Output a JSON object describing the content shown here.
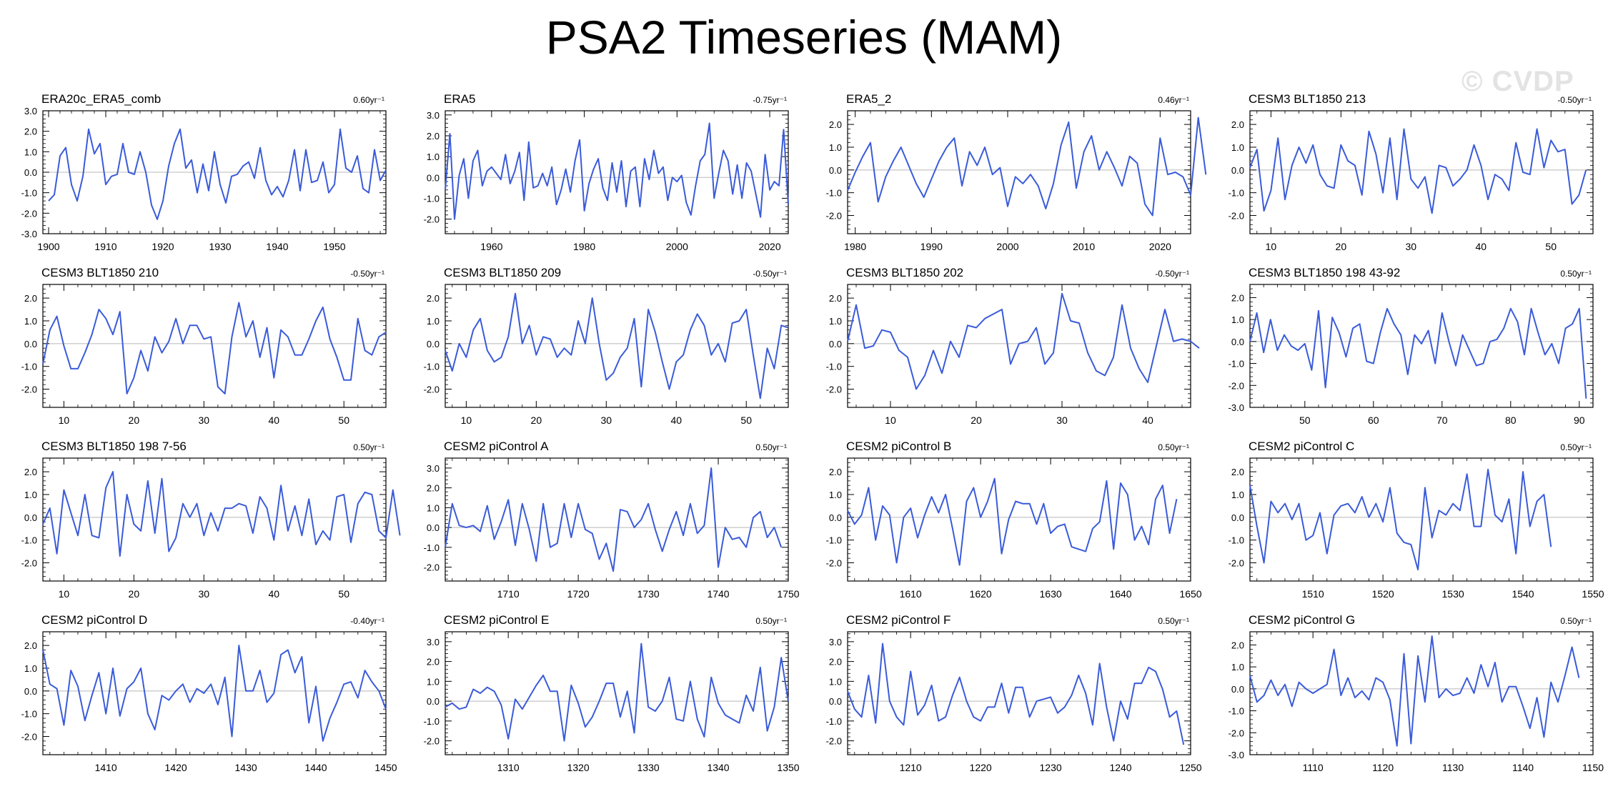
{
  "page": {
    "title": "PSA2 Timeseries (MAM)",
    "watermark": "© CVDP"
  },
  "colors": {
    "series": "#3a5bd9",
    "overlay": "#9a9a9a",
    "zero_line": "#b8b8b8",
    "axis": "#000000"
  },
  "chart_data": [
    {
      "type": "line",
      "title": "ERA20c_ERA5_comb",
      "trend": "0.60yr⁻¹",
      "xlim": [
        1899,
        1959
      ],
      "ylim": [
        -3,
        3
      ],
      "xticks": [
        1900,
        1910,
        1920,
        1930,
        1940,
        1950
      ],
      "yticks": [
        -3,
        -2,
        -1,
        0,
        1,
        2,
        3
      ],
      "yticklabels": [
        "-3.0",
        "-2.0",
        "-1.0",
        "0.0",
        "1.0",
        "2.0",
        "3.0"
      ],
      "x_start": 1900,
      "values": [
        -1.4,
        -1.1,
        0.8,
        1.2,
        -0.6,
        -1.4,
        -0.2,
        2.1,
        0.9,
        1.4,
        -0.6,
        -0.2,
        -0.1,
        1.4,
        0.0,
        -0.1,
        1.0,
        0.0,
        -1.6,
        -2.3,
        -1.4,
        0.3,
        1.4,
        2.1,
        0.2,
        0.6,
        -1.0,
        0.4,
        -0.9,
        1.0,
        -0.6,
        -1.5,
        -0.2,
        -0.1,
        0.3,
        0.5,
        -0.3,
        1.2,
        -0.4,
        -1.1,
        -0.7,
        -1.2,
        -0.4,
        1.1,
        -0.9,
        1.1,
        -0.5,
        -0.4,
        0.5,
        -1.0,
        -0.6,
        2.1,
        0.2,
        0.0,
        0.8,
        -0.8,
        -1.0,
        1.1,
        -0.4,
        0.1
      ]
    },
    {
      "type": "line",
      "title": "ERA5",
      "trend": "-0.75yr⁻¹",
      "xlim": [
        1950,
        2024
      ],
      "ylim": [
        -2.7,
        3.2
      ],
      "xticks": [
        1960,
        1980,
        2000,
        2020
      ],
      "yticks": [
        -2,
        -1,
        0,
        1,
        2,
        3
      ],
      "yticklabels": [
        "-2.0",
        "-1.0",
        "0.0",
        "1.0",
        "2.0",
        "3.0"
      ],
      "x_start": 1950,
      "values": [
        -0.6,
        2.1,
        -2.0,
        0.1,
        0.9,
        -1.0,
        0.8,
        1.3,
        -0.4,
        0.3,
        0.5,
        0.2,
        -0.1,
        1.1,
        -0.3,
        0.3,
        1.2,
        -1.1,
        1.7,
        -0.5,
        -0.4,
        0.2,
        -0.4,
        0.5,
        -1.3,
        -0.6,
        0.4,
        -0.7,
        0.8,
        1.8,
        -1.6,
        -0.3,
        0.4,
        0.9,
        -0.5,
        -1.1,
        0.7,
        -0.7,
        0.8,
        -1.4,
        0.3,
        0.5,
        -1.4,
        0.9,
        -0.1,
        1.3,
        0.2,
        0.5,
        -1.1,
        0.0,
        -0.2,
        0.1,
        -1.2,
        -1.8,
        -0.4,
        0.8,
        1.1,
        2.6,
        -1.0,
        0.2,
        1.3,
        0.8,
        -0.8,
        0.6,
        -1.0,
        0.7,
        0.3,
        -0.8,
        -1.9,
        1.1,
        -0.6,
        -0.2,
        -0.4,
        2.3,
        -1.3
      ]
    },
    {
      "type": "line",
      "title": "ERA5_2",
      "trend": "0.46yr⁻¹",
      "xlim": [
        1979,
        2024
      ],
      "ylim": [
        -2.8,
        2.6
      ],
      "xticks": [
        1980,
        1990,
        2000,
        2010,
        2020
      ],
      "yticks": [
        -2,
        -1,
        0,
        1,
        2
      ],
      "yticklabels": [
        "-2.0",
        "-1.0",
        "0.0",
        "1.0",
        "2.0"
      ],
      "x_start": 1979,
      "values": [
        -0.9,
        -0.1,
        0.6,
        1.2,
        -1.4,
        -0.3,
        0.4,
        1.0,
        0.2,
        -0.6,
        -1.2,
        -0.4,
        0.4,
        1.0,
        1.4,
        -0.7,
        0.8,
        0.2,
        1.0,
        -0.2,
        0.1,
        -1.6,
        -0.3,
        -0.6,
        -0.2,
        -0.7,
        -1.7,
        -0.6,
        1.1,
        2.1,
        -0.8,
        0.8,
        1.5,
        0.0,
        0.8,
        0.1,
        -0.7,
        0.6,
        0.3,
        -1.5,
        -2.0,
        1.4,
        -0.2,
        -0.1,
        -0.3,
        -1.1,
        2.3,
        -0.2
      ]
    },
    {
      "type": "line",
      "title": "CESM3 BLT1850 213",
      "trend": "-0.50yr⁻¹",
      "xlim": [
        7,
        56
      ],
      "ylim": [
        -2.8,
        2.6
      ],
      "xticks": [
        10,
        20,
        30,
        40,
        50
      ],
      "yticks": [
        -2,
        -1,
        0,
        1,
        2
      ],
      "yticklabels": [
        "-2.0",
        "-1.0",
        "0.0",
        "1.0",
        "2.0"
      ],
      "x_start": 7,
      "values": [
        0.1,
        0.9,
        -1.8,
        -0.9,
        1.4,
        -1.3,
        0.2,
        1.0,
        0.3,
        1.1,
        -0.2,
        -0.7,
        -0.8,
        1.1,
        0.4,
        0.2,
        -1.1,
        1.7,
        0.7,
        -1.0,
        1.4,
        -1.3,
        1.8,
        -0.4,
        -0.8,
        -0.3,
        -1.9,
        0.2,
        0.1,
        -0.7,
        -0.4,
        0.0,
        1.1,
        0.2,
        -1.3,
        -0.2,
        -0.4,
        -0.9,
        1.2,
        -0.1,
        -0.2,
        1.8,
        0.1,
        1.3,
        0.8,
        0.9,
        -1.5,
        -1.1,
        0.0
      ]
    },
    {
      "type": "line",
      "title": "CESM3 BLT1850 210",
      "trend": "-0.50yr⁻¹",
      "xlim": [
        7,
        56
      ],
      "ylim": [
        -2.8,
        2.6
      ],
      "xticks": [
        10,
        20,
        30,
        40,
        50
      ],
      "yticks": [
        -2,
        -1,
        0,
        1,
        2
      ],
      "yticklabels": [
        "-2.0",
        "-1.0",
        "0.0",
        "1.0",
        "2.0"
      ],
      "x_start": 7,
      "values": [
        -0.9,
        0.6,
        1.2,
        -0.1,
        -1.1,
        -1.1,
        -0.4,
        0.4,
        1.5,
        1.1,
        0.4,
        1.4,
        -2.2,
        -1.5,
        -0.3,
        -1.2,
        0.3,
        -0.4,
        0.1,
        1.1,
        0.0,
        0.8,
        0.8,
        0.2,
        0.3,
        -1.9,
        -2.2,
        0.3,
        1.8,
        0.3,
        1.0,
        -0.6,
        0.7,
        -1.5,
        0.6,
        0.3,
        -0.5,
        -0.5,
        0.2,
        1.0,
        1.6,
        0.2,
        -0.6,
        -1.6,
        -1.6,
        1.1,
        -0.3,
        -0.5,
        0.3,
        0.5
      ]
    },
    {
      "type": "line",
      "title": "CESM3 BLT1850 209",
      "trend": "-0.50yr⁻¹",
      "xlim": [
        7,
        56
      ],
      "ylim": [
        -2.8,
        2.6
      ],
      "xticks": [
        10,
        20,
        30,
        40,
        50
      ],
      "yticks": [
        -2,
        -1,
        0,
        1,
        2
      ],
      "yticklabels": [
        "-2.0",
        "-1.0",
        "0.0",
        "1.0",
        "2.0"
      ],
      "x_start": 7,
      "values": [
        -0.3,
        -1.2,
        0.0,
        -0.6,
        0.6,
        1.1,
        -0.3,
        -0.8,
        -0.6,
        0.3,
        2.2,
        0.0,
        0.8,
        -0.5,
        0.3,
        0.2,
        -0.6,
        -0.2,
        -0.5,
        1.0,
        0.0,
        2.0,
        0.0,
        -1.6,
        -1.3,
        -0.6,
        -0.2,
        1.1,
        -1.9,
        1.5,
        0.5,
        -0.8,
        -2.0,
        -0.8,
        -0.5,
        0.6,
        1.3,
        0.8,
        -0.5,
        0.0,
        -0.8,
        0.9,
        1.0,
        1.5,
        -0.5,
        -2.4,
        -0.2,
        -1.1,
        0.8,
        0.7
      ]
    },
    {
      "type": "line",
      "title": "CESM3 BLT1850 202",
      "trend": "-0.50yr⁻¹",
      "xlim": [
        5,
        45
      ],
      "ylim": [
        -2.8,
        2.6
      ],
      "xticks": [
        10,
        20,
        30,
        40
      ],
      "yticks": [
        -2,
        -1,
        0,
        1,
        2
      ],
      "yticklabels": [
        "-2.0",
        "-1.0",
        "0.0",
        "1.0",
        "2.0"
      ],
      "x_start": 5,
      "values": [
        0.1,
        1.7,
        -0.2,
        -0.1,
        0.6,
        0.5,
        -0.3,
        -0.6,
        -2.0,
        -1.4,
        -0.3,
        -1.3,
        0.1,
        -0.6,
        0.8,
        0.7,
        1.1,
        1.3,
        1.5,
        -0.9,
        0.0,
        0.1,
        0.7,
        -0.9,
        -0.4,
        2.2,
        1.0,
        0.9,
        -0.4,
        -1.2,
        -1.4,
        -0.6,
        1.7,
        -0.2,
        -1.1,
        -1.7,
        -0.1,
        1.5,
        0.1,
        0.2,
        0.1,
        -0.2
      ]
    },
    {
      "type": "line",
      "title": "CESM3 BLT1850 198 43-92",
      "trend": "0.50yr⁻¹",
      "xlim": [
        42,
        92
      ],
      "ylim": [
        -3,
        2.6
      ],
      "xticks": [
        50,
        60,
        70,
        80,
        90
      ],
      "yticks": [
        -3,
        -2,
        -1,
        0,
        1,
        2
      ],
      "yticklabels": [
        "-3.0",
        "-2.0",
        "-1.0",
        "0.0",
        "1.0",
        "2.0"
      ],
      "x_start": 42,
      "values": [
        0.0,
        1.3,
        -0.5,
        1.0,
        -0.4,
        0.3,
        -0.2,
        -0.4,
        -0.1,
        -1.3,
        1.4,
        -2.1,
        1.1,
        0.4,
        -0.7,
        0.6,
        0.8,
        -0.9,
        -1.0,
        0.4,
        1.5,
        0.8,
        0.3,
        -1.5,
        0.3,
        -0.1,
        0.5,
        -1.0,
        1.3,
        0.0,
        -1.1,
        0.3,
        -0.4,
        -1.1,
        -1.0,
        0.0,
        0.1,
        0.6,
        1.5,
        0.9,
        -0.6,
        1.5,
        0.4,
        -0.6,
        -0.1,
        -1.0,
        0.6,
        0.8,
        1.5,
        -2.6
      ]
    },
    {
      "type": "line",
      "title": "CESM3 BLT1850 198 7-56",
      "trend": "0.50yr⁻¹",
      "xlim": [
        7,
        56
      ],
      "ylim": [
        -2.8,
        2.6
      ],
      "xticks": [
        10,
        20,
        30,
        40,
        50
      ],
      "yticks": [
        -2,
        -1,
        0,
        1,
        2
      ],
      "yticklabels": [
        "-2.0",
        "-1.0",
        "0.0",
        "1.0",
        "2.0"
      ],
      "x_start": 7,
      "values": [
        -0.3,
        0.4,
        -1.6,
        1.2,
        0.2,
        -0.8,
        1.0,
        -0.8,
        -0.9,
        1.3,
        2.0,
        -1.7,
        1.0,
        -0.3,
        -0.6,
        1.6,
        -0.7,
        1.7,
        -1.5,
        -0.9,
        0.6,
        0.0,
        0.6,
        -0.8,
        0.2,
        -0.6,
        0.4,
        0.4,
        0.6,
        0.5,
        -0.7,
        0.9,
        0.4,
        -1.0,
        1.4,
        -0.6,
        0.5,
        -0.8,
        0.8,
        -1.2,
        -0.6,
        -1.0,
        0.9,
        1.0,
        -1.1,
        0.6,
        1.1,
        1.0,
        -0.6,
        -0.9,
        1.2,
        -0.8
      ]
    },
    {
      "type": "line",
      "title": "CESM2 piControl A",
      "trend": "0.50yr⁻¹",
      "xlim": [
        1701,
        1750
      ],
      "ylim": [
        -2.7,
        3.5
      ],
      "xticks": [
        1710,
        1720,
        1730,
        1740,
        1750
      ],
      "yticks": [
        -2,
        -1,
        0,
        1,
        2,
        3
      ],
      "yticklabels": [
        "-2.0",
        "-1.0",
        "0.0",
        "1.0",
        "2.0",
        "3.0"
      ],
      "x_start": 1701,
      "values": [
        -1.0,
        1.2,
        0.1,
        0.0,
        0.1,
        -0.2,
        1.1,
        -0.6,
        0.3,
        1.4,
        -0.9,
        1.2,
        -0.1,
        -1.7,
        1.2,
        -1.0,
        -0.8,
        1.2,
        -0.5,
        1.2,
        -0.1,
        -0.3,
        -1.6,
        -0.8,
        -2.2,
        0.9,
        0.8,
        0.0,
        0.4,
        1.2,
        -0.1,
        -1.2,
        -0.1,
        0.8,
        -0.4,
        1.2,
        -0.3,
        0.1,
        3.0,
        -2.0,
        0.0,
        -0.6,
        -0.5,
        -1.0,
        0.5,
        0.8,
        -0.5,
        0.0,
        -1.0
      ]
    },
    {
      "type": "line",
      "title": "CESM2 piControl B",
      "trend": "0.50yr⁻¹",
      "xlim": [
        1601,
        1650
      ],
      "ylim": [
        -2.8,
        2.6
      ],
      "xticks": [
        1610,
        1620,
        1630,
        1640,
        1650
      ],
      "yticks": [
        -2,
        -1,
        0,
        1,
        2
      ],
      "yticklabels": [
        "-2.0",
        "-1.0",
        "0.0",
        "1.0",
        "2.0"
      ],
      "x_start": 1601,
      "values": [
        0.3,
        -0.3,
        0.1,
        1.3,
        -1.0,
        0.5,
        0.1,
        -2.0,
        0.0,
        0.4,
        -0.9,
        0.1,
        0.9,
        0.2,
        1.0,
        -0.5,
        -2.1,
        0.7,
        1.3,
        0.0,
        0.7,
        1.7,
        -1.6,
        -0.1,
        0.7,
        0.6,
        0.6,
        -0.3,
        0.6,
        -0.7,
        -0.4,
        -0.3,
        -1.3,
        -1.4,
        -1.5,
        -0.5,
        -0.2,
        1.6,
        -1.4,
        1.5,
        1.0,
        -1.0,
        -0.4,
        -1.2,
        0.8,
        1.4,
        -0.7,
        0.8
      ]
    },
    {
      "type": "line",
      "title": "CESM2 piControl C",
      "trend": "0.50yr⁻¹",
      "xlim": [
        1501,
        1550
      ],
      "ylim": [
        -2.8,
        2.6
      ],
      "xticks": [
        1510,
        1520,
        1530,
        1540,
        1550
      ],
      "yticks": [
        -2,
        -1,
        0,
        1,
        2
      ],
      "yticklabels": [
        "-2.0",
        "-1.0",
        "0.0",
        "1.0",
        "2.0"
      ],
      "x_start": 1501,
      "values": [
        1.4,
        -0.4,
        -2.0,
        0.7,
        0.2,
        0.6,
        -0.1,
        0.6,
        -1.0,
        -0.8,
        0.2,
        -1.6,
        0.1,
        0.5,
        0.6,
        0.2,
        0.9,
        0.0,
        0.6,
        -0.2,
        1.3,
        -0.7,
        -1.1,
        -1.2,
        -2.3,
        1.3,
        -0.9,
        0.3,
        0.1,
        0.6,
        0.3,
        1.9,
        -0.4,
        -0.4,
        2.1,
        0.1,
        -0.2,
        0.8,
        -1.6,
        2.0,
        -0.4,
        0.7,
        1.0,
        -1.3
      ]
    },
    {
      "type": "line",
      "title": "CESM2 piControl D",
      "trend": "-0.40yr⁻¹",
      "xlim": [
        1401,
        1450
      ],
      "ylim": [
        -2.8,
        2.6
      ],
      "xticks": [
        1410,
        1420,
        1430,
        1440,
        1450
      ],
      "yticks": [
        -2,
        -1,
        0,
        1,
        2
      ],
      "yticklabels": [
        "-2.0",
        "-1.0",
        "0.0",
        "1.0",
        "2.0"
      ],
      "x_start": 1401,
      "values": [
        1.8,
        0.3,
        0.1,
        -1.5,
        0.9,
        0.2,
        -1.3,
        -0.2,
        0.8,
        -1.0,
        1.0,
        -1.1,
        0.1,
        0.4,
        1.0,
        -1.0,
        -1.7,
        -0.2,
        -0.4,
        0.0,
        0.3,
        -0.5,
        0.1,
        -0.1,
        0.3,
        -0.6,
        0.6,
        -2.0,
        2.0,
        0.0,
        0.0,
        0.9,
        -0.5,
        -0.1,
        1.6,
        1.8,
        0.8,
        1.5,
        -1.4,
        0.2,
        -2.2,
        -1.2,
        -0.5,
        0.3,
        0.4,
        -0.3,
        0.9,
        0.4,
        0.0,
        -0.8
      ]
    },
    {
      "type": "line",
      "title": "CESM2 piControl E",
      "trend": "0.50yr⁻¹",
      "xlim": [
        1301,
        1350
      ],
      "ylim": [
        -2.7,
        3.5
      ],
      "xticks": [
        1310,
        1320,
        1330,
        1340,
        1350
      ],
      "yticks": [
        -2,
        -1,
        0,
        1,
        2,
        3
      ],
      "yticklabels": [
        "-2.0",
        "-1.0",
        "0.0",
        "1.0",
        "2.0",
        "3.0"
      ],
      "x_start": 1301,
      "values": [
        -0.3,
        -0.1,
        -0.4,
        -0.3,
        0.6,
        0.4,
        0.7,
        0.5,
        -0.2,
        -1.9,
        0.1,
        -0.4,
        0.2,
        0.8,
        1.3,
        0.5,
        0.5,
        -2.0,
        0.8,
        -0.1,
        -1.3,
        -0.8,
        0.0,
        0.9,
        0.9,
        -0.8,
        0.5,
        -1.6,
        2.9,
        -0.3,
        -0.5,
        0.0,
        1.2,
        -0.9,
        -1.0,
        1.0,
        -0.9,
        -1.8,
        1.2,
        -0.1,
        -0.7,
        -0.9,
        -1.1,
        0.3,
        -0.5,
        1.7,
        -1.5,
        -0.3,
        2.2,
        0.0
      ]
    },
    {
      "type": "line",
      "title": "CESM2 piControl F",
      "trend": "0.50yr⁻¹",
      "xlim": [
        1201,
        1250
      ],
      "ylim": [
        -2.7,
        3.5
      ],
      "xticks": [
        1210,
        1220,
        1230,
        1240,
        1250
      ],
      "yticks": [
        -2,
        -1,
        0,
        1,
        2,
        3
      ],
      "yticklabels": [
        "-2.0",
        "-1.0",
        "0.0",
        "1.0",
        "2.0",
        "3.0"
      ],
      "x_start": 1201,
      "values": [
        0.5,
        -0.4,
        -0.8,
        1.3,
        -1.1,
        2.9,
        0.0,
        -0.8,
        -1.2,
        1.5,
        -0.7,
        -0.2,
        0.8,
        -1.0,
        -0.8,
        0.3,
        1.2,
        0.0,
        -0.8,
        -1.0,
        -0.3,
        -0.3,
        0.9,
        -0.6,
        0.7,
        0.7,
        -0.8,
        0.0,
        0.1,
        0.2,
        -0.6,
        -0.3,
        0.3,
        1.3,
        0.4,
        -1.2,
        1.9,
        -0.3,
        -2.0,
        0.0,
        -0.9,
        0.9,
        0.9,
        1.7,
        1.5,
        0.6,
        -0.8,
        -0.5,
        -2.2
      ]
    },
    {
      "type": "line",
      "title": "CESM2 piControl G",
      "trend": "0.50yr⁻¹",
      "xlim": [
        1101,
        1150
      ],
      "ylim": [
        -3,
        2.6
      ],
      "xticks": [
        1110,
        1120,
        1130,
        1140,
        1150
      ],
      "yticks": [
        -3,
        -2,
        -1,
        0,
        1,
        2
      ],
      "yticklabels": [
        "-3.0",
        "-2.0",
        "-1.0",
        "0.0",
        "1.0",
        "2.0"
      ],
      "x_start": 1101,
      "values": [
        0.6,
        -0.6,
        -0.3,
        0.4,
        -0.3,
        0.2,
        -0.8,
        0.3,
        0.0,
        -0.2,
        0.0,
        0.2,
        1.8,
        -0.3,
        0.5,
        -0.4,
        -0.1,
        -0.5,
        0.5,
        0.3,
        -0.5,
        -2.6,
        1.6,
        -2.5,
        1.5,
        -0.6,
        2.4,
        -0.4,
        0.0,
        -0.3,
        -0.2,
        0.5,
        -0.2,
        1.1,
        0.1,
        1.2,
        -0.6,
        0.1,
        0.1,
        -0.8,
        -1.8,
        -0.4,
        -2.2,
        0.3,
        -0.6,
        0.6,
        1.9,
        0.5
      ]
    }
  ]
}
